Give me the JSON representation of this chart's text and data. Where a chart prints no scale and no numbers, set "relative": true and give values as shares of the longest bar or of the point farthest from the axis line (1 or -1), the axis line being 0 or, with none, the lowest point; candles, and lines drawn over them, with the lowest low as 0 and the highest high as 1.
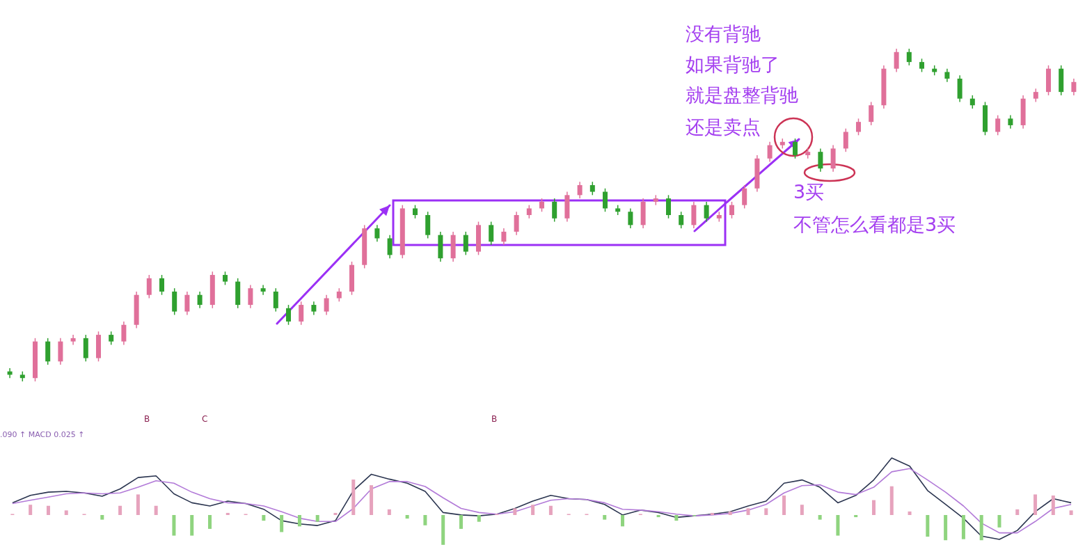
{
  "chart_data": [
    {
      "type": "candlestick",
      "relative": true,
      "categories": [
        null,
        null,
        null,
        null,
        null,
        null,
        null,
        null,
        null,
        null,
        null,
        null,
        null,
        null,
        null,
        null,
        null,
        null,
        null,
        null,
        null,
        null,
        null,
        null,
        null,
        null,
        null,
        null,
        null,
        null,
        null,
        null,
        null,
        null,
        null,
        null,
        null,
        null,
        null,
        null,
        null,
        null,
        null,
        null,
        null,
        null,
        null,
        null,
        null,
        null,
        null,
        null,
        null,
        null,
        null,
        null,
        null,
        null,
        null,
        null,
        null,
        null,
        null,
        null,
        null,
        null,
        null,
        null,
        null,
        null,
        null,
        null,
        null,
        null,
        null,
        null,
        null,
        null,
        null,
        null,
        null,
        null,
        null,
        null,
        null
      ],
      "ohlc": [
        [
          0.03,
          0.04,
          0.01,
          0.02
        ],
        [
          0.02,
          0.03,
          0.0,
          0.01
        ],
        [
          0.01,
          0.13,
          0.0,
          0.12
        ],
        [
          0.12,
          0.13,
          0.05,
          0.06
        ],
        [
          0.06,
          0.13,
          0.05,
          0.12
        ],
        [
          0.12,
          0.14,
          0.11,
          0.13
        ],
        [
          0.13,
          0.14,
          0.06,
          0.07
        ],
        [
          0.07,
          0.15,
          0.06,
          0.14
        ],
        [
          0.14,
          0.15,
          0.11,
          0.12
        ],
        [
          0.12,
          0.18,
          0.11,
          0.17
        ],
        [
          0.17,
          0.27,
          0.16,
          0.26
        ],
        [
          0.26,
          0.32,
          0.25,
          0.31
        ],
        [
          0.31,
          0.32,
          0.26,
          0.27
        ],
        [
          0.27,
          0.28,
          0.2,
          0.21
        ],
        [
          0.21,
          0.27,
          0.2,
          0.26
        ],
        [
          0.26,
          0.27,
          0.22,
          0.23
        ],
        [
          0.23,
          0.33,
          0.22,
          0.32
        ],
        [
          0.32,
          0.33,
          0.29,
          0.3
        ],
        [
          0.3,
          0.31,
          0.22,
          0.23
        ],
        [
          0.23,
          0.29,
          0.22,
          0.28
        ],
        [
          0.28,
          0.29,
          0.26,
          0.27
        ],
        [
          0.27,
          0.28,
          0.21,
          0.22
        ],
        [
          0.22,
          0.23,
          0.17,
          0.18
        ],
        [
          0.18,
          0.24,
          0.17,
          0.23
        ],
        [
          0.23,
          0.24,
          0.2,
          0.21
        ],
        [
          0.21,
          0.26,
          0.2,
          0.25
        ],
        [
          0.25,
          0.28,
          0.24,
          0.27
        ],
        [
          0.27,
          0.36,
          0.26,
          0.35
        ],
        [
          0.35,
          0.47,
          0.34,
          0.46
        ],
        [
          0.46,
          0.47,
          0.42,
          0.43
        ],
        [
          0.43,
          0.44,
          0.37,
          0.38
        ],
        [
          0.38,
          0.53,
          0.37,
          0.52
        ],
        [
          0.52,
          0.53,
          0.49,
          0.5
        ],
        [
          0.5,
          0.51,
          0.43,
          0.44
        ],
        [
          0.44,
          0.45,
          0.36,
          0.37
        ],
        [
          0.37,
          0.45,
          0.36,
          0.44
        ],
        [
          0.44,
          0.45,
          0.38,
          0.39
        ],
        [
          0.39,
          0.48,
          0.38,
          0.47
        ],
        [
          0.47,
          0.48,
          0.41,
          0.42
        ],
        [
          0.42,
          0.46,
          0.41,
          0.45
        ],
        [
          0.45,
          0.51,
          0.44,
          0.5
        ],
        [
          0.5,
          0.53,
          0.49,
          0.52
        ],
        [
          0.52,
          0.55,
          0.51,
          0.54
        ],
        [
          0.54,
          0.55,
          0.48,
          0.49
        ],
        [
          0.49,
          0.57,
          0.48,
          0.56
        ],
        [
          0.56,
          0.6,
          0.55,
          0.59
        ],
        [
          0.59,
          0.6,
          0.56,
          0.57
        ],
        [
          0.57,
          0.58,
          0.51,
          0.52
        ],
        [
          0.52,
          0.53,
          0.5,
          0.51
        ],
        [
          0.51,
          0.52,
          0.46,
          0.47
        ],
        [
          0.47,
          0.55,
          0.46,
          0.54
        ],
        [
          0.54,
          0.56,
          0.53,
          0.55
        ],
        [
          0.55,
          0.56,
          0.49,
          0.5
        ],
        [
          0.5,
          0.51,
          0.46,
          0.47
        ],
        [
          0.47,
          0.54,
          0.46,
          0.53
        ],
        [
          0.53,
          0.54,
          0.48,
          0.49
        ],
        [
          0.49,
          0.51,
          0.48,
          0.5
        ],
        [
          0.5,
          0.54,
          0.49,
          0.53
        ],
        [
          0.53,
          0.59,
          0.52,
          0.58
        ],
        [
          0.58,
          0.68,
          0.57,
          0.67
        ],
        [
          0.67,
          0.72,
          0.66,
          0.71
        ],
        [
          0.71,
          0.73,
          0.7,
          0.72
        ],
        [
          0.72,
          0.73,
          0.67,
          0.68
        ],
        [
          0.68,
          0.7,
          0.67,
          0.69
        ],
        [
          0.69,
          0.7,
          0.63,
          0.64
        ],
        [
          0.64,
          0.71,
          0.63,
          0.7
        ],
        [
          0.7,
          0.76,
          0.69,
          0.75
        ],
        [
          0.75,
          0.79,
          0.74,
          0.78
        ],
        [
          0.78,
          0.84,
          0.77,
          0.83
        ],
        [
          0.83,
          0.95,
          0.82,
          0.94
        ],
        [
          0.94,
          1.0,
          0.93,
          0.99
        ],
        [
          0.99,
          1.0,
          0.95,
          0.96
        ],
        [
          0.96,
          0.97,
          0.93,
          0.94
        ],
        [
          0.94,
          0.95,
          0.92,
          0.93
        ],
        [
          0.93,
          0.94,
          0.9,
          0.91
        ],
        [
          0.91,
          0.92,
          0.84,
          0.85
        ],
        [
          0.85,
          0.86,
          0.82,
          0.83
        ],
        [
          0.83,
          0.84,
          0.74,
          0.75
        ],
        [
          0.75,
          0.8,
          0.74,
          0.79
        ],
        [
          0.79,
          0.8,
          0.76,
          0.77
        ],
        [
          0.77,
          0.86,
          0.76,
          0.85
        ],
        [
          0.85,
          0.88,
          0.84,
          0.87
        ],
        [
          0.87,
          0.95,
          0.86,
          0.94
        ],
        [
          0.94,
          0.95,
          0.86,
          0.87
        ],
        [
          0.87,
          0.91,
          0.86,
          0.9
        ]
      ],
      "colors": [
        "#2fa02f",
        "#2fa02f",
        "#e0709a",
        "#2fa02f",
        "#e0709a",
        "#e0709a",
        "#2fa02f",
        "#e0709a",
        "#2fa02f",
        "#e0709a",
        "#e0709a",
        "#e0709a",
        "#2fa02f",
        "#2fa02f",
        "#e0709a",
        "#2fa02f",
        "#e0709a",
        "#2fa02f",
        "#2fa02f",
        "#e0709a",
        "#2fa02f",
        "#2fa02f",
        "#2fa02f",
        "#e0709a",
        "#2fa02f",
        "#e0709a",
        "#e0709a",
        "#e0709a",
        "#e0709a",
        "#2fa02f",
        "#2fa02f",
        "#e0709a",
        "#2fa02f",
        "#2fa02f",
        "#2fa02f",
        "#e0709a",
        "#2fa02f",
        "#e0709a",
        "#2fa02f",
        "#e0709a",
        "#e0709a",
        "#e0709a",
        "#e0709a",
        "#2fa02f",
        "#e0709a",
        "#e0709a",
        "#2fa02f",
        "#2fa02f",
        "#2fa02f",
        "#2fa02f",
        "#e0709a",
        "#e0709a",
        "#2fa02f",
        "#2fa02f",
        "#e0709a",
        "#2fa02f",
        "#e0709a",
        "#e0709a",
        "#e0709a",
        "#e0709a",
        "#e0709a",
        "#e0709a",
        "#2fa02f",
        "#e0709a",
        "#2fa02f",
        "#e0709a",
        "#e0709a",
        "#e0709a",
        "#e0709a",
        "#e0709a",
        "#e0709a",
        "#2fa02f",
        "#2fa02f",
        "#2fa02f",
        "#2fa02f",
        "#2fa02f",
        "#2fa02f",
        "#2fa02f",
        "#e0709a",
        "#2fa02f",
        "#e0709a",
        "#e0709a",
        "#e0709a",
        "#2fa02f",
        "#e0709a"
      ],
      "annotations": [
        "没有背驰",
        "如果背驰了",
        "就是盘整背驰",
        "还是卖点",
        "3买",
        "不管怎么看都是3买",
        "B",
        "C",
        "B"
      ]
    },
    {
      "type": "line",
      "relative": true,
      "categories": [
        null,
        null,
        null,
        null,
        null,
        null,
        null,
        null,
        null,
        null,
        null,
        null,
        null,
        null,
        null,
        null,
        null,
        null,
        null,
        null,
        null,
        null,
        null,
        null,
        null,
        null,
        null,
        null,
        null,
        null,
        null,
        null,
        null,
        null,
        null,
        null,
        null,
        null,
        null,
        null,
        null,
        null,
        null,
        null,
        null,
        null,
        null,
        null,
        null,
        null,
        null,
        null,
        null,
        null,
        null,
        null,
        null,
        null,
        null,
        null
      ],
      "series": [
        {
          "color": "#2b3550",
          "values": [
            0.45,
            0.54,
            0.58,
            0.59,
            0.57,
            0.53,
            0.62,
            0.76,
            0.78,
            0.56,
            0.45,
            0.41,
            0.47,
            0.44,
            0.37,
            0.23,
            0.19,
            0.17,
            0.23,
            0.6,
            0.8,
            0.74,
            0.69,
            0.59,
            0.33,
            0.3,
            0.29,
            0.31,
            0.38,
            0.47,
            0.54,
            0.5,
            0.49,
            0.43,
            0.3,
            0.36,
            0.33,
            0.27,
            0.29,
            0.31,
            0.34,
            0.41,
            0.47,
            0.69,
            0.73,
            0.64,
            0.45,
            0.54,
            0.73,
            1,
            0.9,
            0.6,
            0.43,
            0.26,
            0.04,
            0,
            0.11,
            0.34,
            0.5,
            0.45
          ]
        },
        {
          "color": "#b27ad8",
          "values": [
            0.44,
            0.48,
            0.52,
            0.56,
            0.57,
            0.56,
            0.57,
            0.64,
            0.72,
            0.69,
            0.58,
            0.5,
            0.45,
            0.44,
            0.41,
            0.34,
            0.26,
            0.22,
            0.22,
            0.38,
            0.62,
            0.71,
            0.71,
            0.65,
            0.51,
            0.38,
            0.33,
            0.31,
            0.34,
            0.41,
            0.48,
            0.5,
            0.49,
            0.45,
            0.37,
            0.36,
            0.34,
            0.31,
            0.29,
            0.3,
            0.32,
            0.36,
            0.43,
            0.57,
            0.66,
            0.67,
            0.58,
            0.55,
            0.64,
            0.83,
            0.87,
            0.73,
            0.58,
            0.41,
            0.2,
            0.08,
            0.08,
            0.22,
            0.38,
            0.43
          ]
        }
      ],
      "annotations": [
        ".090 ↑ MACD 0.025 ↑"
      ]
    },
    {
      "type": "bar",
      "relative": true,
      "categories": [
        null,
        null,
        null,
        null,
        null,
        null,
        null,
        null,
        null,
        null,
        null,
        null,
        null,
        null,
        null,
        null,
        null,
        null,
        null,
        null,
        null,
        null,
        null,
        null,
        null,
        null,
        null,
        null,
        null,
        null,
        null,
        null,
        null,
        null,
        null,
        null,
        null,
        null,
        null,
        null,
        null,
        null,
        null,
        null,
        null,
        null,
        null,
        null,
        null,
        null,
        null,
        null,
        null,
        null,
        null,
        null,
        null,
        null,
        null,
        null
      ],
      "values": [
        0.03,
        0.29,
        0.26,
        0.13,
        0.03,
        -0.13,
        0.26,
        0.58,
        0.26,
        -0.58,
        -0.58,
        -0.39,
        0.06,
        0.03,
        -0.16,
        -0.48,
        -0.32,
        -0.19,
        0.06,
        1,
        0.84,
        0.16,
        -0.1,
        -0.29,
        -0.84,
        -0.39,
        -0.19,
        0.03,
        0.19,
        0.29,
        0.26,
        0.03,
        0.03,
        -0.13,
        -0.32,
        0.03,
        -0.06,
        -0.16,
        -0.03,
        0.06,
        0.1,
        0.19,
        0.19,
        0.55,
        0.29,
        -0.13,
        -0.58,
        -0.06,
        0.42,
        0.81,
        0.1,
        -0.61,
        -0.71,
        -0.68,
        -0.71,
        -0.35,
        0.16,
        0.58,
        0.55,
        0.13
      ],
      "colors": [
        "#e6a3bd",
        "#e6a3bd",
        "#e6a3bd",
        "#e6a3bd",
        "#e6a3bd",
        "#8fd47f",
        "#e6a3bd",
        "#e6a3bd",
        "#e6a3bd",
        "#8fd47f",
        "#8fd47f",
        "#8fd47f",
        "#e6a3bd",
        "#e6a3bd",
        "#8fd47f",
        "#8fd47f",
        "#8fd47f",
        "#8fd47f",
        "#e6a3bd",
        "#e6a3bd",
        "#e6a3bd",
        "#e6a3bd",
        "#8fd47f",
        "#8fd47f",
        "#8fd47f",
        "#8fd47f",
        "#8fd47f",
        "#e6a3bd",
        "#e6a3bd",
        "#e6a3bd",
        "#e6a3bd",
        "#e6a3bd",
        "#e6a3bd",
        "#8fd47f",
        "#8fd47f",
        "#e6a3bd",
        "#8fd47f",
        "#8fd47f",
        "#8fd47f",
        "#e6a3bd",
        "#e6a3bd",
        "#e6a3bd",
        "#e6a3bd",
        "#e6a3bd",
        "#e6a3bd",
        "#8fd47f",
        "#8fd47f",
        "#8fd47f",
        "#e6a3bd",
        "#e6a3bd",
        "#e6a3bd",
        "#8fd47f",
        "#8fd47f",
        "#8fd47f",
        "#8fd47f",
        "#8fd47f",
        "#e6a3bd",
        "#e6a3bd",
        "#e6a3bd",
        "#e6a3bd"
      ]
    }
  ]
}
